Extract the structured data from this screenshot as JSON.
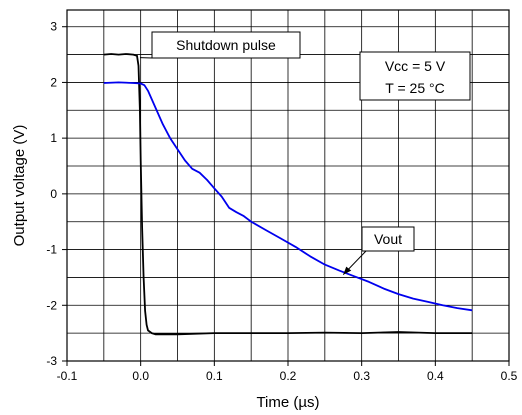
{
  "chart_data": {
    "type": "line",
    "xlabel": "Time (µs)",
    "ylabel": "Output voltage (V)",
    "xlim": [
      -0.1,
      0.5
    ],
    "ylim": [
      -3,
      3.3
    ],
    "x_ticks": [
      -0.1,
      0.0,
      0.1,
      0.2,
      0.3,
      0.4,
      0.5
    ],
    "x_tick_labels": [
      "-0.1",
      "0.0",
      "0.1",
      "0.2",
      "0.3",
      "0.4",
      "0.5"
    ],
    "y_ticks": [
      -3,
      -2,
      -1,
      0,
      1,
      2,
      3
    ],
    "y_tick_labels": [
      "-3",
      "-2",
      "-1",
      "0",
      "1",
      "2",
      "3"
    ],
    "grid": true,
    "series": [
      {
        "name": "Shutdown pulse",
        "color": "#000000",
        "x": [
          -0.05,
          -0.04,
          -0.03,
          -0.02,
          -0.01,
          -0.005,
          -0.003,
          -0.001,
          0.0,
          0.002,
          0.004,
          0.006,
          0.008,
          0.01,
          0.015,
          0.02,
          0.05,
          0.1,
          0.15,
          0.2,
          0.25,
          0.3,
          0.35,
          0.4,
          0.45
        ],
        "y": [
          2.5,
          2.51,
          2.5,
          2.51,
          2.5,
          2.48,
          2.3,
          1.5,
          0.6,
          -0.6,
          -1.5,
          -2.1,
          -2.35,
          -2.45,
          -2.5,
          -2.52,
          -2.52,
          -2.5,
          -2.5,
          -2.5,
          -2.49,
          -2.5,
          -2.48,
          -2.5,
          -2.5
        ]
      },
      {
        "name": "Vout",
        "color": "#0000ee",
        "x": [
          -0.05,
          -0.03,
          -0.01,
          0.0,
          0.005,
          0.01,
          0.02,
          0.03,
          0.04,
          0.05,
          0.06,
          0.07,
          0.08,
          0.09,
          0.1,
          0.11,
          0.12,
          0.13,
          0.14,
          0.15,
          0.17,
          0.19,
          0.21,
          0.23,
          0.25,
          0.27,
          0.29,
          0.31,
          0.33,
          0.35,
          0.37,
          0.39,
          0.41,
          0.43,
          0.45
        ],
        "y": [
          1.99,
          2.0,
          1.99,
          1.98,
          1.95,
          1.85,
          1.55,
          1.25,
          1.0,
          0.8,
          0.6,
          0.45,
          0.38,
          0.25,
          0.1,
          -0.05,
          -0.25,
          -0.33,
          -0.4,
          -0.5,
          -0.65,
          -0.8,
          -0.95,
          -1.12,
          -1.27,
          -1.38,
          -1.48,
          -1.58,
          -1.7,
          -1.8,
          -1.88,
          -1.94,
          -2.0,
          -2.05,
          -2.09
        ]
      }
    ],
    "annotations": [
      {
        "text": "Shutdown pulse",
        "target": [
          -0.005,
          2.48
        ]
      },
      {
        "text": "Vout",
        "target": [
          0.275,
          -1.45
        ]
      }
    ],
    "legend_box": [
      "Vcc = 5 V",
      "T = 25 °C"
    ]
  }
}
